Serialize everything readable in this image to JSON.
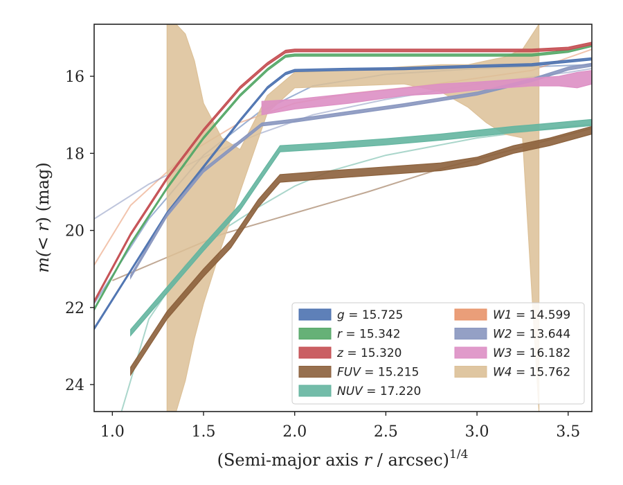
{
  "chart_data": {
    "type": "line",
    "xlabel": "(Semi-major axis r / arcsec)^{1/4}",
    "xlabel_main": "(Semi-major axis ",
    "xlabel_var": "r",
    "xlabel_tail": " / arcsec)",
    "xlabel_sup": "1/4",
    "ylabel": "m(< r) (mag)",
    "ylabel_pre": "m(",
    "ylabel_mid": "< r",
    "ylabel_post": ") (mag)",
    "xlim": [
      0.9,
      3.63
    ],
    "ylim": [
      24.7,
      14.65
    ],
    "y_inverted": true,
    "x_ticks": [
      1.0,
      1.5,
      2.0,
      2.5,
      3.0,
      3.5
    ],
    "x_tick_labels": [
      "1.0",
      "1.5",
      "2.0",
      "2.5",
      "3.0",
      "3.5"
    ],
    "y_ticks": [
      16,
      18,
      20,
      22,
      24
    ],
    "y_tick_labels": [
      "16",
      "18",
      "20",
      "22",
      "24"
    ],
    "grid": false,
    "legend_position": "bottom-right",
    "series": [
      {
        "name": "g = 15.725",
        "label_var": "g",
        "label_val": "= 15.725",
        "color": "#4c72b0",
        "band": {
          "x": [
            0.9,
            1.1,
            1.3,
            1.5,
            1.7,
            1.85,
            1.95,
            2.0,
            2.3,
            2.6,
            3.0,
            3.3,
            3.63
          ],
          "y": [
            22.55,
            21.05,
            19.55,
            18.35,
            17.15,
            16.3,
            15.93,
            15.85,
            15.82,
            15.8,
            15.74,
            15.7,
            15.55
          ],
          "half": 0.03
        },
        "model": {
          "x": [
            0.9,
            1.2,
            1.5,
            1.8,
            2.1,
            2.5,
            3.0,
            3.5,
            3.63
          ],
          "y": [
            21.9,
            19.7,
            18.05,
            16.95,
            16.25,
            15.95,
            15.8,
            15.72,
            15.7
          ]
        }
      },
      {
        "name": "r = 15.342",
        "label_var": "r",
        "label_val": "= 15.342",
        "color": "#55a868",
        "band": {
          "x": [
            0.9,
            1.1,
            1.3,
            1.5,
            1.7,
            1.85,
            1.95,
            2.0,
            2.5,
            3.0,
            3.3,
            3.5,
            3.63
          ],
          "y": [
            22.05,
            20.35,
            18.9,
            17.6,
            16.5,
            15.83,
            15.48,
            15.45,
            15.45,
            15.45,
            15.45,
            15.35,
            15.2
          ],
          "half": 0.03
        }
      },
      {
        "name": "z = 15.320",
        "label_var": "z",
        "label_val": "= 15.320",
        "color": "#c44e52",
        "band": {
          "x": [
            0.9,
            1.1,
            1.3,
            1.5,
            1.7,
            1.85,
            1.95,
            2.0,
            2.5,
            3.0,
            3.3,
            3.5,
            3.63
          ],
          "y": [
            21.85,
            20.1,
            18.65,
            17.4,
            16.3,
            15.68,
            15.36,
            15.33,
            15.33,
            15.33,
            15.33,
            15.28,
            15.15
          ],
          "half": 0.035
        }
      },
      {
        "name": "FUV = 15.215",
        "label_var": "FUV",
        "label_val": "= 15.215",
        "color": "#8c613c",
        "band": {
          "x": [
            1.1,
            1.3,
            1.5,
            1.65,
            1.8,
            1.92,
            2.2,
            2.5,
            2.8,
            3.0,
            3.2,
            3.4,
            3.63
          ],
          "y": [
            23.65,
            22.2,
            21.1,
            20.35,
            19.3,
            18.65,
            18.55,
            18.45,
            18.35,
            18.2,
            17.9,
            17.7,
            17.4
          ],
          "half": 0.1
        },
        "model": {
          "x": [
            1.0,
            1.3,
            1.6,
            2.0,
            2.4,
            2.8,
            3.2,
            3.63
          ],
          "y": [
            21.3,
            20.7,
            20.1,
            19.55,
            19.0,
            18.4,
            17.9,
            17.35
          ]
        }
      },
      {
        "name": "NUV = 17.220",
        "label_var": "NUV",
        "label_val": "= 17.220",
        "color": "#64b5a0",
        "band": {
          "x": [
            1.1,
            1.3,
            1.5,
            1.7,
            1.83,
            1.92,
            2.2,
            2.5,
            2.8,
            3.0,
            3.2,
            3.4,
            3.63
          ],
          "y": [
            22.65,
            21.55,
            20.45,
            19.4,
            18.5,
            17.88,
            17.8,
            17.7,
            17.58,
            17.48,
            17.38,
            17.3,
            17.2
          ],
          "half": 0.08
        },
        "model": {
          "x": [
            1.05,
            1.2,
            1.4,
            1.6,
            1.8,
            2.0,
            2.2,
            2.5,
            3.0,
            3.5,
            3.63
          ],
          "y": [
            24.7,
            22.3,
            20.9,
            20.0,
            19.4,
            18.85,
            18.45,
            18.05,
            17.6,
            17.3,
            17.25
          ]
        }
      },
      {
        "name": "W1 = 14.599",
        "label_var": "W1",
        "label_val": "= 14.599",
        "color": "#e8946a",
        "model": {
          "x": [
            0.9,
            1.1,
            1.4,
            1.7,
            2.0,
            2.3,
            2.7,
            3.0,
            3.3,
            3.63
          ],
          "y": [
            20.9,
            19.35,
            18.05,
            17.2,
            16.7,
            16.45,
            16.25,
            16.05,
            15.85,
            15.3
          ]
        }
      },
      {
        "name": "W2 = 13.644",
        "label_var": "W2",
        "label_val": "= 13.644",
        "color": "#8896bf",
        "band": {
          "x": [
            1.1,
            1.3,
            1.5,
            1.7,
            1.82,
            2.0,
            2.3,
            2.6,
            3.0,
            3.3,
            3.5,
            3.63
          ],
          "y": [
            21.2,
            19.6,
            18.45,
            17.7,
            17.25,
            17.15,
            16.95,
            16.75,
            16.45,
            16.1,
            15.8,
            15.7
          ],
          "half": 0.04
        },
        "model": {
          "x": [
            0.9,
            1.2,
            1.5,
            1.8,
            2.1,
            2.5,
            3.0,
            3.5,
            3.63
          ],
          "y": [
            19.7,
            18.8,
            18.1,
            17.5,
            17.0,
            16.6,
            16.2,
            15.9,
            15.8
          ]
        }
      },
      {
        "name": "W3 = 16.182",
        "label_var": "W3",
        "label_val": "= 16.182",
        "color": "#dd8fc4",
        "band": {
          "x": [
            1.82,
            2.0,
            2.3,
            2.6,
            2.8,
            3.0,
            3.3,
            3.45,
            3.55,
            3.63
          ],
          "lo": [
            16.65,
            16.6,
            16.45,
            16.3,
            16.2,
            16.15,
            16.05,
            16.0,
            15.9,
            15.85
          ],
          "hi": [
            17.0,
            16.85,
            16.7,
            16.5,
            16.45,
            16.35,
            16.25,
            16.25,
            16.3,
            16.2
          ]
        }
      },
      {
        "name": "W4 = 15.762",
        "label_var": "W4",
        "label_val": "= 15.762",
        "color": "#dcc097",
        "band": {
          "x": [
            1.3,
            1.35,
            1.4,
            1.45,
            1.5,
            1.6,
            1.7,
            1.85,
            2.0,
            2.3,
            2.6,
            2.8,
            2.95,
            3.05,
            3.15,
            3.25,
            3.34
          ],
          "lo": [
            14.65,
            14.65,
            14.9,
            15.6,
            16.7,
            17.6,
            17.9,
            16.5,
            15.9,
            15.85,
            15.75,
            15.7,
            15.7,
            15.6,
            15.5,
            15.3,
            14.65
          ],
          "hi": [
            24.7,
            24.7,
            23.9,
            22.8,
            21.9,
            20.4,
            19.0,
            16.95,
            16.3,
            16.25,
            16.2,
            16.4,
            16.8,
            17.2,
            17.5,
            17.6,
            24.7
          ]
        }
      }
    ]
  }
}
